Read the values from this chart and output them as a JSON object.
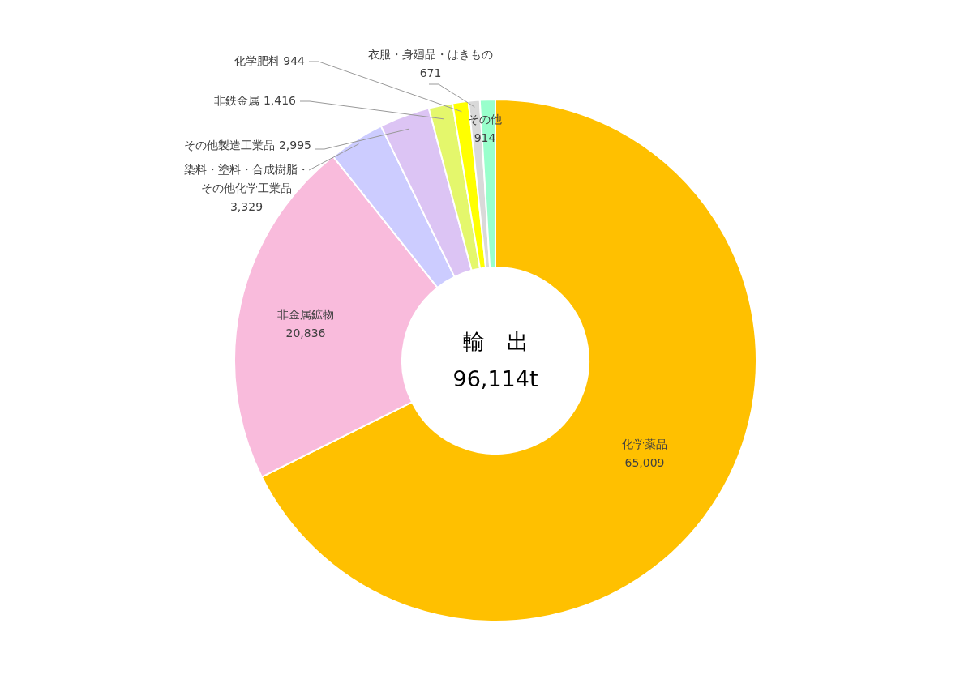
{
  "chart_data": {
    "type": "donut",
    "title": "輸　出",
    "subtitle": "96,114t",
    "categories": [
      "化学薬品",
      "非金属鉱物",
      "染料・塗料・合成樹脂・その他化学工業品",
      "その他製造工業品",
      "非鉄金属",
      "化学肥料",
      "衣服・身廻品・はきもの",
      "その他"
    ],
    "values": [
      65009,
      20836,
      3329,
      2995,
      1416,
      944,
      671,
      914
    ],
    "value_labels": [
      "65,009",
      "20,836",
      "3,329",
      "2,995",
      "1,416",
      "944",
      "671",
      "914"
    ],
    "colors": [
      "#ffc000",
      "#f9bbdc",
      "#ccccff",
      "#dcc4f4",
      "#e4f76c",
      "#ffff00",
      "#d9d9d9",
      "#99ffcc"
    ]
  }
}
